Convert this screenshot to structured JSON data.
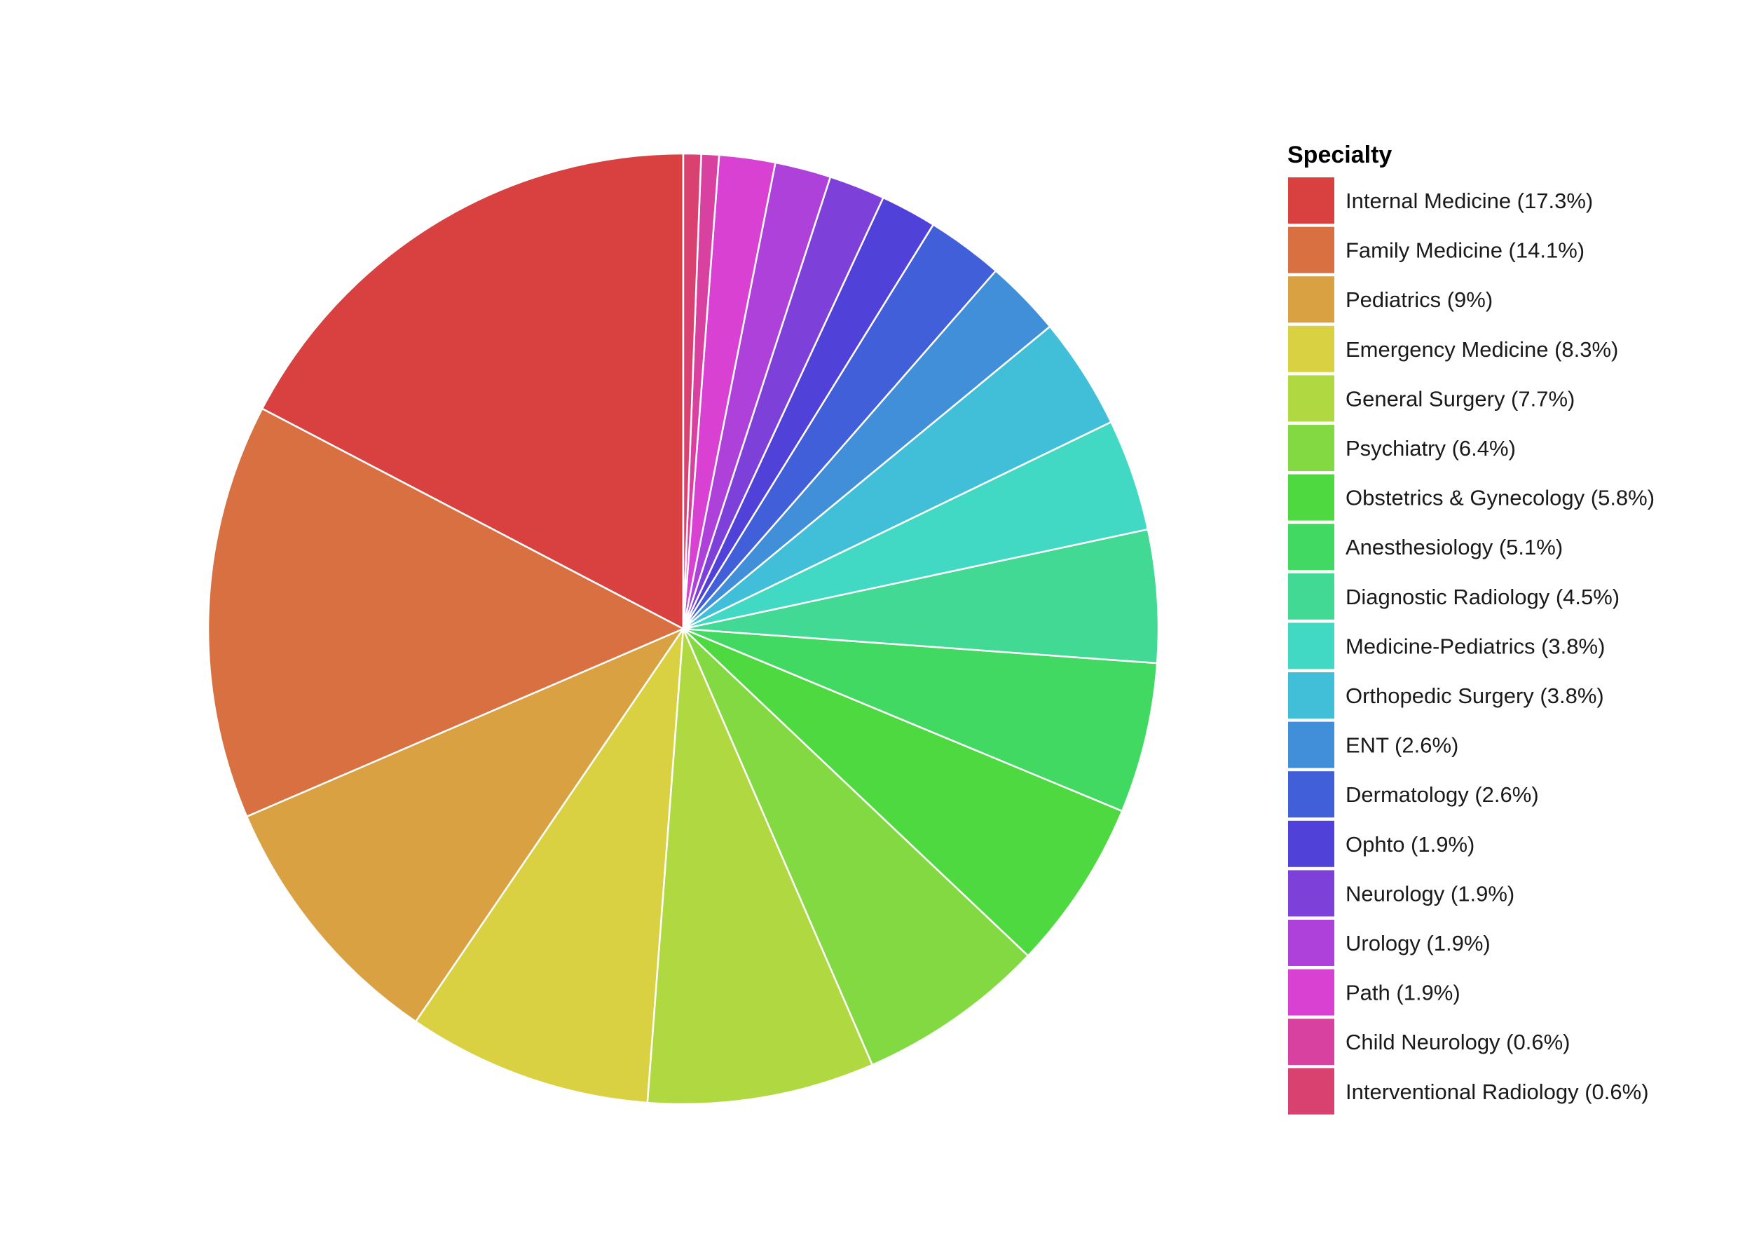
{
  "chart_data": {
    "type": "pie",
    "legend_title": "Specialty",
    "legend_position": "right",
    "direction": "clockwise",
    "start": "top",
    "slices": [
      {
        "label": "Internal Medicine (17.3%)",
        "category": "Internal Medicine",
        "value": 17.3,
        "color": "#d94141"
      },
      {
        "label": "Family Medicine (14.1%)",
        "category": "Family Medicine",
        "value": 14.1,
        "color": "#d97041"
      },
      {
        "label": "Pediatrics (9%)",
        "category": "Pediatrics",
        "value": 9,
        "color": "#d9a141"
      },
      {
        "label": "Emergency Medicine (8.3%)",
        "category": "Emergency Medicine",
        "value": 8.3,
        "color": "#d9d141"
      },
      {
        "label": "General Surgery (7.7%)",
        "category": "General Surgery",
        "value": 7.7,
        "color": "#b0d941"
      },
      {
        "label": "Psychiatry (6.4%)",
        "category": "Psychiatry",
        "value": 6.4,
        "color": "#82d941"
      },
      {
        "label": "Obstetrics & Gynecology (5.8%)",
        "category": "Obstetrics & Gynecology",
        "value": 5.8,
        "color": "#4fd941"
      },
      {
        "label": "Anesthesiology (5.1%)",
        "category": "Anesthesiology",
        "value": 5.1,
        "color": "#41d962"
      },
      {
        "label": "Diagnostic Radiology (4.5%)",
        "category": "Diagnostic Radiology",
        "value": 4.5,
        "color": "#41d993"
      },
      {
        "label": "Medicine-Pediatrics (3.8%)",
        "category": "Medicine-Pediatrics",
        "value": 3.8,
        "color": "#41d9c4"
      },
      {
        "label": "Orthopedic Surgery (3.8%)",
        "category": "Orthopedic Surgery",
        "value": 3.8,
        "color": "#41bfd9"
      },
      {
        "label": "ENT (2.6%)",
        "category": "ENT",
        "value": 2.6,
        "color": "#418fd9"
      },
      {
        "label": "Dermatology (2.6%)",
        "category": "Dermatology",
        "value": 2.6,
        "color": "#415fd9"
      },
      {
        "label": "Ophto (1.9%)",
        "category": "Ophto",
        "value": 1.9,
        "color": "#5041d9"
      },
      {
        "label": "Neurology (1.9%)",
        "category": "Neurology",
        "value": 1.9,
        "color": "#7d41d9"
      },
      {
        "label": "Urology (1.9%)",
        "category": "Urology",
        "value": 1.9,
        "color": "#ae41d9"
      },
      {
        "label": "Path (1.9%)",
        "category": "Path",
        "value": 1.9,
        "color": "#d941d3"
      },
      {
        "label": "Child Neurology (0.6%)",
        "category": "Child Neurology",
        "value": 0.6,
        "color": "#d941a1"
      },
      {
        "label": "Interventional Radiology (0.6%)",
        "category": "Interventional Radiology",
        "value": 0.6,
        "color": "#d94170"
      }
    ]
  }
}
